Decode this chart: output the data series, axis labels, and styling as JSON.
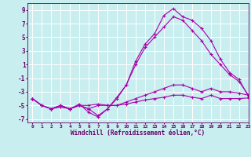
{
  "xlabel": "Windchill (Refroidissement éolien,°C)",
  "bg_color": "#c8eef0",
  "line_color": "#aa00aa",
  "xlim": [
    -0.5,
    23
  ],
  "ylim": [
    -7.5,
    10.0
  ],
  "yticks": [
    -7,
    -5,
    -3,
    -1,
    1,
    3,
    5,
    7,
    9
  ],
  "xticks": [
    0,
    1,
    2,
    3,
    4,
    5,
    6,
    7,
    8,
    9,
    10,
    11,
    12,
    13,
    14,
    15,
    16,
    17,
    18,
    19,
    20,
    21,
    22,
    23
  ],
  "lines": [
    {
      "x": [
        0,
        1,
        2,
        3,
        4,
        5,
        6,
        7,
        8,
        9,
        10,
        11,
        12,
        13,
        14,
        15,
        16,
        17,
        18,
        19,
        20,
        21,
        22,
        23
      ],
      "y": [
        -4,
        -5,
        -5.5,
        -5.2,
        -5.5,
        -5,
        -5,
        -4.8,
        -5,
        -5,
        -4.8,
        -4.5,
        -4.2,
        -4,
        -3.8,
        -3.5,
        -3.5,
        -3.8,
        -4,
        -3.5,
        -4,
        -4,
        -4.0,
        -3.9
      ]
    },
    {
      "x": [
        0,
        1,
        2,
        3,
        4,
        5,
        6,
        7,
        8,
        9,
        10,
        11,
        12,
        13,
        14,
        15,
        16,
        17,
        18,
        19,
        20,
        21,
        22,
        23
      ],
      "y": [
        -4,
        -5,
        -5.5,
        -5.2,
        -5.5,
        -5,
        -5.5,
        -5,
        -5,
        -5,
        -4.5,
        -4,
        -3.5,
        -3,
        -2.5,
        -2,
        -2,
        -2.5,
        -3,
        -2.5,
        -3,
        -3,
        -3.2,
        -3.5
      ]
    },
    {
      "x": [
        0,
        1,
        2,
        3,
        4,
        5,
        6,
        7,
        8,
        9,
        10,
        11,
        12,
        13,
        14,
        15,
        16,
        17,
        18,
        19,
        20,
        21,
        22,
        23
      ],
      "y": [
        -4,
        -5,
        -5.5,
        -5,
        -5.5,
        -5,
        -5.5,
        -6.5,
        -5.5,
        -4,
        -2,
        1,
        3.5,
        5,
        6.5,
        8,
        7.5,
        6,
        4.5,
        2.5,
        1,
        -0.5,
        -1.5,
        -3.5
      ]
    },
    {
      "x": [
        0,
        1,
        2,
        3,
        4,
        5,
        6,
        7,
        8,
        9,
        10,
        11,
        12,
        13,
        14,
        15,
        16,
        17,
        18,
        19,
        20,
        21,
        22,
        23
      ],
      "y": [
        -4,
        -5,
        -5.5,
        -5,
        -5.5,
        -4.8,
        -6,
        -6.7,
        -5.5,
        -3.8,
        -2,
        1.5,
        4,
        5.5,
        8.2,
        9.2,
        8,
        7.5,
        6.3,
        4.5,
        1.8,
        -0.2,
        -1.2,
        -3.7
      ]
    }
  ]
}
